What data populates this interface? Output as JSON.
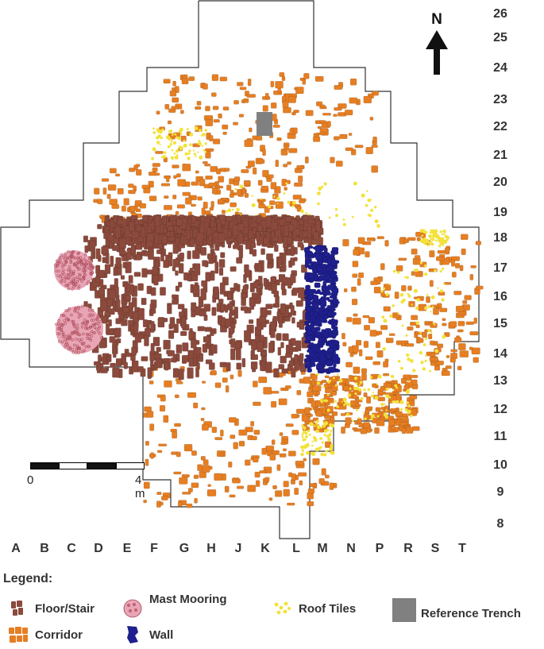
{
  "north": {
    "label": "N",
    "icon": "north-arrow-icon"
  },
  "grid": {
    "rows": [
      "26",
      "25",
      "24",
      "23",
      "22",
      "21",
      "20",
      "19",
      "18",
      "17",
      "16",
      "15",
      "14",
      "13",
      "12",
      "11",
      "10",
      "9",
      "8"
    ],
    "columns": [
      "A",
      "B",
      "C",
      "D",
      "E",
      "F",
      "G",
      "H",
      "J",
      "K",
      "L",
      "M",
      "N",
      "P",
      "R",
      "S",
      "T"
    ]
  },
  "scale_bar": {
    "start_label": "0",
    "end_label": "4 m"
  },
  "legend": {
    "title": "Legend:",
    "items": [
      {
        "key": "floor",
        "label": "Floor/Stair",
        "color": "#8B4A3C"
      },
      {
        "key": "mooring",
        "label": "Mast Mooring",
        "color": "#E8A5B5"
      },
      {
        "key": "tiles",
        "label": "Roof Tiles",
        "color": "#F2E23A"
      },
      {
        "key": "trench",
        "label": "Reference Trench",
        "color": "#808080"
      },
      {
        "key": "corridor",
        "label": "Corridor",
        "color": "#E67E22"
      },
      {
        "key": "wall",
        "label": "Wall",
        "color": "#1F1F8F"
      }
    ]
  }
}
